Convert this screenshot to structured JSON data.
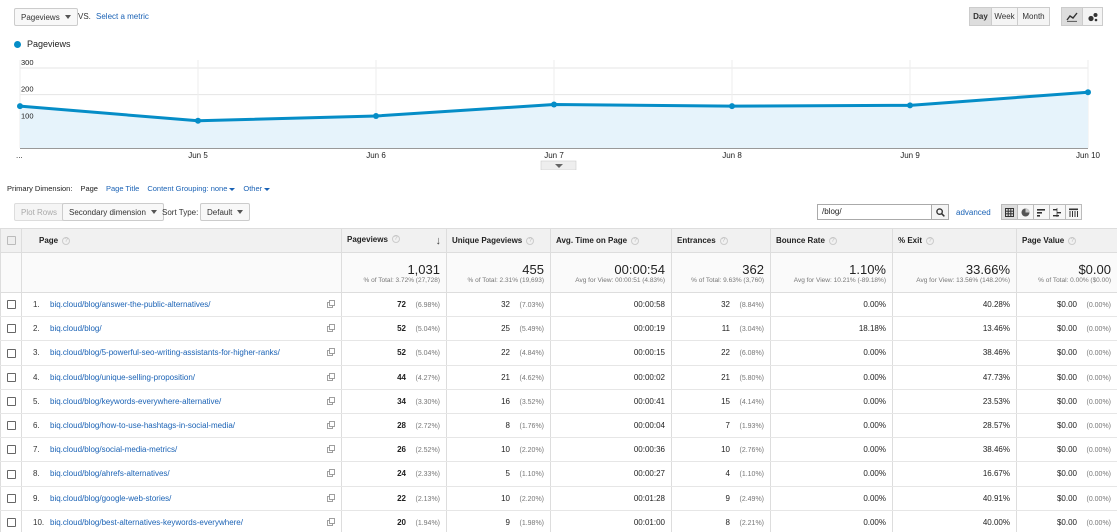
{
  "toolbar": {
    "metric_select": "Pageviews",
    "vs_label": "VS.",
    "select_metric_link": "Select a metric",
    "granularity": [
      "Day",
      "Week",
      "Month"
    ],
    "granularity_active": "Day"
  },
  "legend_label": "Pageviews",
  "chart_data": {
    "type": "line",
    "x": [
      "...",
      "Jun 5",
      "Jun 6",
      "Jun 7",
      "Jun 8",
      "Jun 9",
      "Jun 10"
    ],
    "x_ticks": [
      "...",
      "Jun 5",
      "Jun 6",
      "Jun 7",
      "Jun 8",
      "Jun 9",
      "Jun 10"
    ],
    "values": [
      157,
      102,
      120,
      163,
      157,
      160,
      209
    ],
    "ylim": [
      0,
      330
    ],
    "y_ticks": [
      100,
      200,
      300
    ],
    "series_color": "#058dc7",
    "fill_color": "#e6f3fb",
    "grid": true
  },
  "dimensions": {
    "label": "Primary Dimension:",
    "active": "Page",
    "items": [
      "Page Title",
      "Content Grouping: none",
      "Other"
    ]
  },
  "controls": {
    "plot_rows": "Plot Rows",
    "secondary_dimension": "Secondary dimension",
    "sort_type_label": "Sort Type:",
    "sort_type_value": "Default",
    "search_value": "/blog/",
    "advanced_link": "advanced"
  },
  "table": {
    "columns": [
      "Page",
      "Pageviews",
      "Unique Pageviews",
      "Avg. Time on Page",
      "Entrances",
      "Bounce Rate",
      "% Exit",
      "Page Value"
    ],
    "totals": [
      {
        "big": "1,031",
        "sub": "% of Total: 3.72% (27,728)"
      },
      {
        "big": "455",
        "sub": "% of Total: 2.31% (19,693)"
      },
      {
        "big": "00:00:54",
        "sub": "Avg for View: 00:00:51 (4.83%)"
      },
      {
        "big": "362",
        "sub": "% of Total: 9.63% (3,760)"
      },
      {
        "big": "1.10%",
        "sub": "Avg for View: 10.21% (-89.18%)"
      },
      {
        "big": "33.66%",
        "sub": "Avg for View: 13.56% (148.20%)"
      },
      {
        "big": "$0.00",
        "sub": "% of Total: 0.00% ($0.00)"
      }
    ],
    "rows": [
      {
        "n": "1.",
        "url": "biq.cloud/blog/answer-the-public-alternatives/",
        "pv": "72",
        "pvp": "(6.98%)",
        "upv": "32",
        "upvp": "(7.03%)",
        "time": "00:00:58",
        "ent": "32",
        "entp": "(8.84%)",
        "br": "0.00%",
        "exit": "40.28%",
        "val": "$0.00",
        "valp": "(0.00%)"
      },
      {
        "n": "2.",
        "url": "biq.cloud/blog/",
        "pv": "52",
        "pvp": "(5.04%)",
        "upv": "25",
        "upvp": "(5.49%)",
        "time": "00:00:19",
        "ent": "11",
        "entp": "(3.04%)",
        "br": "18.18%",
        "exit": "13.46%",
        "val": "$0.00",
        "valp": "(0.00%)"
      },
      {
        "n": "3.",
        "url": "biq.cloud/blog/5-powerful-seo-writing-assistants-for-higher-ranks/",
        "pv": "52",
        "pvp": "(5.04%)",
        "upv": "22",
        "upvp": "(4.84%)",
        "time": "00:00:15",
        "ent": "22",
        "entp": "(6.08%)",
        "br": "0.00%",
        "exit": "38.46%",
        "val": "$0.00",
        "valp": "(0.00%)"
      },
      {
        "n": "4.",
        "url": "biq.cloud/blog/unique-selling-proposition/",
        "pv": "44",
        "pvp": "(4.27%)",
        "upv": "21",
        "upvp": "(4.62%)",
        "time": "00:00:02",
        "ent": "21",
        "entp": "(5.80%)",
        "br": "0.00%",
        "exit": "47.73%",
        "val": "$0.00",
        "valp": "(0.00%)"
      },
      {
        "n": "5.",
        "url": "biq.cloud/blog/keywords-everywhere-alternative/",
        "pv": "34",
        "pvp": "(3.30%)",
        "upv": "16",
        "upvp": "(3.52%)",
        "time": "00:00:41",
        "ent": "15",
        "entp": "(4.14%)",
        "br": "0.00%",
        "exit": "23.53%",
        "val": "$0.00",
        "valp": "(0.00%)"
      },
      {
        "n": "6.",
        "url": "biq.cloud/blog/how-to-use-hashtags-in-social-media/",
        "pv": "28",
        "pvp": "(2.72%)",
        "upv": "8",
        "upvp": "(1.76%)",
        "time": "00:00:04",
        "ent": "7",
        "entp": "(1.93%)",
        "br": "0.00%",
        "exit": "28.57%",
        "val": "$0.00",
        "valp": "(0.00%)"
      },
      {
        "n": "7.",
        "url": "biq.cloud/blog/social-media-metrics/",
        "pv": "26",
        "pvp": "(2.52%)",
        "upv": "10",
        "upvp": "(2.20%)",
        "time": "00:00:36",
        "ent": "10",
        "entp": "(2.76%)",
        "br": "0.00%",
        "exit": "38.46%",
        "val": "$0.00",
        "valp": "(0.00%)"
      },
      {
        "n": "8.",
        "url": "biq.cloud/blog/ahrefs-alternatives/",
        "pv": "24",
        "pvp": "(2.33%)",
        "upv": "5",
        "upvp": "(1.10%)",
        "time": "00:00:27",
        "ent": "4",
        "entp": "(1.10%)",
        "br": "0.00%",
        "exit": "16.67%",
        "val": "$0.00",
        "valp": "(0.00%)"
      },
      {
        "n": "9.",
        "url": "biq.cloud/blog/google-web-stories/",
        "pv": "22",
        "pvp": "(2.13%)",
        "upv": "10",
        "upvp": "(2.20%)",
        "time": "00:01:28",
        "ent": "9",
        "entp": "(2.49%)",
        "br": "0.00%",
        "exit": "40.91%",
        "val": "$0.00",
        "valp": "(0.00%)"
      },
      {
        "n": "10.",
        "url": "biq.cloud/blog/best-alternatives-keywords-everywhere/",
        "pv": "20",
        "pvp": "(1.94%)",
        "upv": "9",
        "upvp": "(1.98%)",
        "time": "00:01:00",
        "ent": "8",
        "entp": "(2.21%)",
        "br": "0.00%",
        "exit": "40.00%",
        "val": "$0.00",
        "valp": "(0.00%)"
      }
    ]
  }
}
